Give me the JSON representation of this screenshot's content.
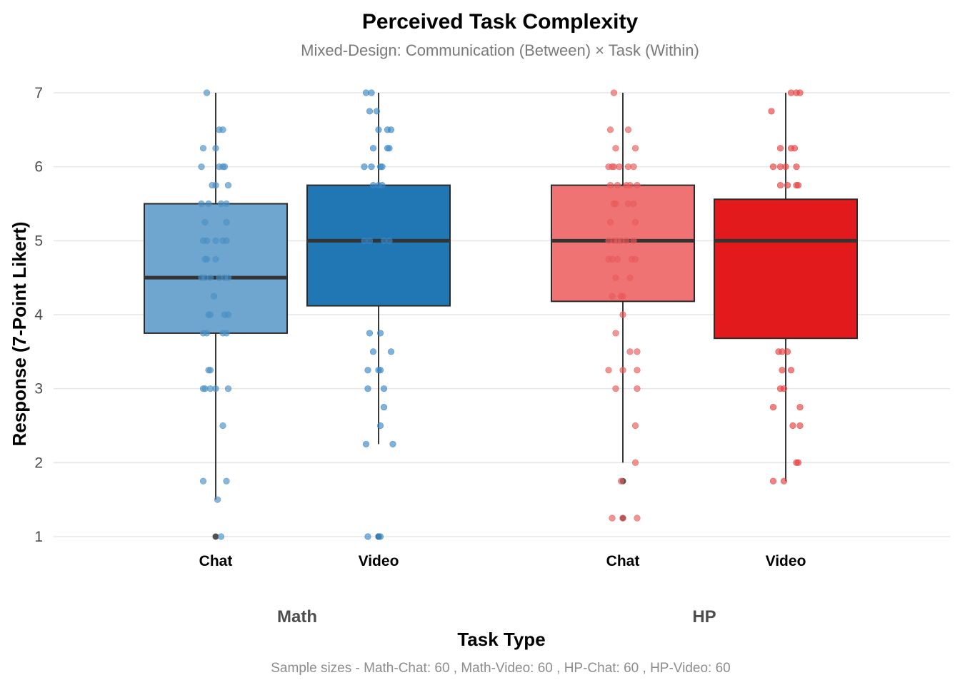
{
  "chart_data": {
    "type": "boxplot",
    "title": "Perceived Task Complexity",
    "subtitle": "Mixed-Design: Communication (Between) × Task (Within)",
    "xlabel": "Task Type",
    "ylabel": "Response (7-Point Likert)",
    "caption": "Sample sizes - Math-Chat: 60 , Math-Video: 60 , HP-Chat: 60 , HP-Video: 60",
    "ylim": [
      1,
      7
    ],
    "yticks": [
      1,
      2,
      3,
      4,
      5,
      6,
      7
    ],
    "grid": true,
    "facets": [
      {
        "label": "Math",
        "groups": [
          {
            "label": "Chat",
            "color": "#6fa6cf",
            "point_color": "#4a90c4",
            "min": 1.5,
            "q1": 3.75,
            "median": 4.5,
            "q3": 5.5,
            "max": 7,
            "outliers": [
              1
            ],
            "points": [
              [
                -0.05,
                7
              ],
              [
                0.02,
                6.5
              ],
              [
                0.04,
                6.5
              ],
              [
                -0.07,
                6.25
              ],
              [
                0.0,
                6.25
              ],
              [
                -0.08,
                6
              ],
              [
                0.02,
                6
              ],
              [
                0.05,
                6
              ],
              [
                0.04,
                6
              ],
              [
                -0.02,
                5.75
              ],
              [
                0.0,
                5.75
              ],
              [
                0.07,
                5.75
              ],
              [
                -0.08,
                5.5
              ],
              [
                -0.04,
                5.5
              ],
              [
                0.03,
                5.5
              ],
              [
                0.06,
                5.5
              ],
              [
                -0.06,
                5.25
              ],
              [
                0.06,
                5.25
              ],
              [
                -0.07,
                5
              ],
              [
                -0.05,
                5
              ],
              [
                0.0,
                5
              ],
              [
                0.04,
                5
              ],
              [
                0.06,
                5
              ],
              [
                -0.06,
                4.75
              ],
              [
                -0.05,
                4.75
              ],
              [
                0.0,
                4.75
              ],
              [
                -0.08,
                4.5
              ],
              [
                -0.06,
                4.5
              ],
              [
                -0.03,
                4.5
              ],
              [
                0.02,
                4.5
              ],
              [
                0.05,
                4.5
              ],
              [
                0.07,
                4.5
              ],
              [
                -0.01,
                4.25
              ],
              [
                -0.04,
                4
              ],
              [
                -0.03,
                4
              ],
              [
                0.05,
                4
              ],
              [
                0.07,
                4
              ],
              [
                -0.07,
                3.75
              ],
              [
                -0.05,
                3.75
              ],
              [
                0.04,
                3.75
              ],
              [
                0.06,
                3.75
              ],
              [
                -0.04,
                3.25
              ],
              [
                -0.03,
                3.25
              ],
              [
                -0.07,
                3
              ],
              [
                -0.06,
                3
              ],
              [
                -0.03,
                3
              ],
              [
                0.0,
                3
              ],
              [
                0.07,
                3
              ],
              [
                0.04,
                2.5
              ],
              [
                -0.07,
                1.75
              ],
              [
                0.06,
                1.75
              ],
              [
                0.01,
                1.5
              ],
              [
                0.03,
                1
              ]
            ]
          },
          {
            "label": "Video",
            "color": "#2077b4",
            "point_color": "#3a87c4",
            "min": 2.25,
            "q1": 4.12,
            "median": 5,
            "q3": 5.75,
            "max": 7,
            "outliers": [
              1
            ],
            "points": [
              [
                -0.07,
                7
              ],
              [
                -0.04,
                7
              ],
              [
                -0.05,
                6.75
              ],
              [
                -0.01,
                6.75
              ],
              [
                0.0,
                6.5
              ],
              [
                0.05,
                6.5
              ],
              [
                0.07,
                6.5
              ],
              [
                -0.03,
                6.25
              ],
              [
                0.05,
                6.25
              ],
              [
                0.06,
                6.25
              ],
              [
                -0.08,
                6
              ],
              [
                -0.04,
                6
              ],
              [
                0.01,
                6
              ],
              [
                0.02,
                6
              ],
              [
                -0.03,
                5.75
              ],
              [
                0.0,
                5.75
              ],
              [
                0.02,
                5.75
              ],
              [
                -0.08,
                5
              ],
              [
                -0.05,
                5
              ],
              [
                0.03,
                5
              ],
              [
                0.06,
                5
              ],
              [
                -0.05,
                3.75
              ],
              [
                0.01,
                3.75
              ],
              [
                -0.03,
                3.5
              ],
              [
                0.07,
                3.5
              ],
              [
                -0.06,
                3.25
              ],
              [
                0.0,
                3.25
              ],
              [
                0.01,
                3.25
              ],
              [
                -0.06,
                3
              ],
              [
                0.03,
                3
              ],
              [
                0.03,
                2.75
              ],
              [
                0.01,
                2.5
              ],
              [
                -0.07,
                2.25
              ],
              [
                0.08,
                2.25
              ],
              [
                -0.06,
                1
              ],
              [
                0.0,
                1
              ],
              [
                0.01,
                1
              ]
            ]
          }
        ]
      },
      {
        "label": "HP",
        "groups": [
          {
            "label": "Chat",
            "color": "#ef7373",
            "point_color": "#e85a5a",
            "min": 2,
            "q1": 4.18,
            "median": 5,
            "q3": 5.75,
            "max": 7,
            "outliers": [
              1.75,
              1.25
            ],
            "points": [
              [
                -0.05,
                7
              ],
              [
                -0.07,
                6.5
              ],
              [
                0.03,
                6.5
              ],
              [
                -0.04,
                6.25
              ],
              [
                0.07,
                6.25
              ],
              [
                -0.08,
                6
              ],
              [
                -0.06,
                6
              ],
              [
                -0.05,
                6
              ],
              [
                -0.02,
                6
              ],
              [
                0.03,
                6
              ],
              [
                0.06,
                6
              ],
              [
                -0.07,
                5.75
              ],
              [
                -0.03,
                5.75
              ],
              [
                0.02,
                5.75
              ],
              [
                0.04,
                5.75
              ],
              [
                0.08,
                5.75
              ],
              [
                -0.05,
                5.5
              ],
              [
                -0.04,
                5.5
              ],
              [
                0.03,
                5.5
              ],
              [
                0.06,
                5.5
              ],
              [
                -0.07,
                5.25
              ],
              [
                0.07,
                5.25
              ],
              [
                -0.08,
                5
              ],
              [
                -0.05,
                5
              ],
              [
                -0.03,
                5
              ],
              [
                -0.01,
                5
              ],
              [
                0.02,
                5
              ],
              [
                0.06,
                5
              ],
              [
                -0.08,
                4.75
              ],
              [
                -0.06,
                4.75
              ],
              [
                -0.03,
                4.75
              ],
              [
                0.05,
                4.75
              ],
              [
                0.07,
                4.75
              ],
              [
                -0.04,
                4.5
              ],
              [
                0.04,
                4.5
              ],
              [
                -0.06,
                4.25
              ],
              [
                -0.01,
                4.25
              ],
              [
                0.0,
                4.25
              ],
              [
                0.0,
                4
              ],
              [
                -0.04,
                3.75
              ],
              [
                0.04,
                3.5
              ],
              [
                0.08,
                3.5
              ],
              [
                -0.08,
                3.25
              ],
              [
                0.0,
                3.25
              ],
              [
                0.08,
                3.25
              ],
              [
                -0.04,
                3
              ],
              [
                0.08,
                3
              ],
              [
                0.07,
                2.5
              ],
              [
                0.07,
                2
              ],
              [
                -0.01,
                1.75
              ],
              [
                -0.06,
                1.25
              ],
              [
                0.0,
                1.25
              ],
              [
                0.08,
                1.25
              ]
            ]
          },
          {
            "label": "Video",
            "color": "#e31a1c",
            "point_color": "#e64040",
            "min": 1.75,
            "q1": 3.68,
            "median": 5,
            "q3": 5.56,
            "max": 7,
            "outliers": [],
            "points": [
              [
                0.03,
                7
              ],
              [
                0.06,
                7
              ],
              [
                0.08,
                7
              ],
              [
                -0.08,
                6.75
              ],
              [
                -0.03,
                6.25
              ],
              [
                0.03,
                6.25
              ],
              [
                0.05,
                6.25
              ],
              [
                -0.07,
                6
              ],
              [
                -0.03,
                6
              ],
              [
                0.0,
                6
              ],
              [
                0.06,
                6
              ],
              [
                -0.03,
                5.75
              ],
              [
                0.01,
                5.75
              ],
              [
                0.06,
                5.75
              ],
              [
                0.07,
                5.75
              ],
              [
                -0.04,
                3.5
              ],
              [
                -0.02,
                3.5
              ],
              [
                0.01,
                3.5
              ],
              [
                -0.02,
                3.25
              ],
              [
                0.03,
                3.25
              ],
              [
                -0.03,
                3
              ],
              [
                -0.01,
                3
              ],
              [
                -0.07,
                2.75
              ],
              [
                0.08,
                2.75
              ],
              [
                0.04,
                2.5
              ],
              [
                0.08,
                2.5
              ],
              [
                0.06,
                2
              ],
              [
                0.07,
                2
              ],
              [
                -0.07,
                1.75
              ],
              [
                -0.01,
                1.75
              ]
            ]
          }
        ]
      }
    ]
  }
}
